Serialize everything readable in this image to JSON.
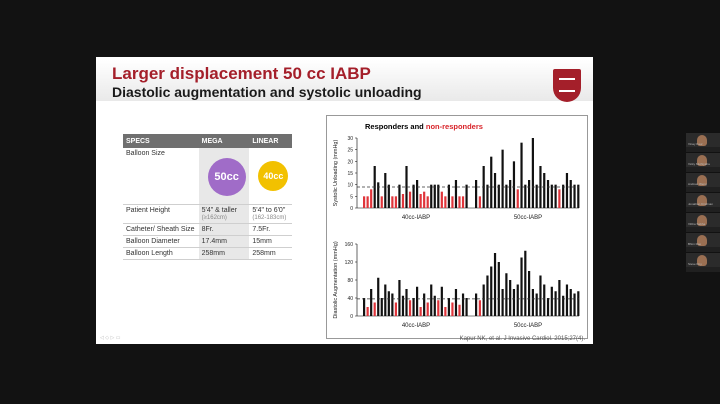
{
  "slide": {
    "title": "Larger displacement 50 cc IABP",
    "subtitle": "Diastolic augmentation and systolic unloading",
    "logo": "university-shield",
    "slide_nav": "◁ ◇ ▷ ▭",
    "citation": "Kapur NK, et al. J Invasive Cardiol. 2015;27(4)."
  },
  "table": {
    "headers": [
      "SPECS",
      "MEGA",
      "LINEAR"
    ],
    "balloon_label": "Balloon Size",
    "mega_balloon": "50cc",
    "linear_balloon": "40cc",
    "rows": [
      {
        "label": "Patient Height",
        "mega": "5'4\" & taller",
        "mega_sub": "(≥162cm)",
        "linear": "5'4\" to 6'0\"",
        "linear_sub": "(162-183cm)"
      },
      {
        "label": "Catheter/ Sheath Size",
        "mega": "8Fr.",
        "mega_sub": "",
        "linear": "7.5Fr.",
        "linear_sub": ""
      },
      {
        "label": "Balloon Diameter",
        "mega": "17.4mm",
        "mega_sub": "",
        "linear": "15mm",
        "linear_sub": ""
      },
      {
        "label": "Balloon Length",
        "mega": "258mm",
        "mega_sub": "",
        "linear": "258mm",
        "linear_sub": ""
      }
    ]
  },
  "chart_title": {
    "black": "Responders and",
    "red": "non-responders"
  },
  "chart_data": [
    {
      "type": "bar",
      "title": "Systolic Unloading",
      "ylabel": "Systolic Unloading (mmHg)",
      "ylim": [
        0,
        30
      ],
      "yticks": [
        0,
        5,
        10,
        15,
        20,
        25,
        30
      ],
      "threshold": 9,
      "groups": [
        "40cc-IABP",
        "50cc-IABP"
      ],
      "series": [
        {
          "name": "40cc-IABP",
          "values": [
            5,
            5,
            8,
            18,
            11,
            5,
            15,
            10,
            5,
            5,
            10,
            6,
            18,
            7,
            10,
            12,
            6,
            7,
            5,
            10,
            10,
            10,
            7,
            5,
            10,
            5,
            12,
            5,
            5,
            10
          ],
          "nonresponder": [
            1,
            1,
            1,
            0,
            0,
            1,
            0,
            0,
            1,
            1,
            0,
            1,
            0,
            1,
            0,
            0,
            1,
            1,
            1,
            0,
            0,
            0,
            1,
            1,
            0,
            1,
            0,
            1,
            1,
            0
          ]
        },
        {
          "name": "50cc-IABP",
          "values": [
            12,
            5,
            18,
            10,
            22,
            15,
            10,
            25,
            10,
            12,
            20,
            8,
            28,
            10,
            12,
            30,
            10,
            18,
            15,
            12,
            10,
            10,
            8,
            10,
            15,
            12,
            10,
            10
          ],
          "nonresponder": [
            0,
            1,
            0,
            0,
            0,
            0,
            0,
            0,
            0,
            0,
            0,
            1,
            0,
            0,
            0,
            0,
            0,
            0,
            0,
            0,
            0,
            0,
            1,
            0,
            0,
            0,
            0,
            0
          ]
        }
      ]
    },
    {
      "type": "bar",
      "title": "Diastolic Augmentation",
      "ylabel": "Diastolic Augmentation (mmHg)",
      "ylim": [
        0,
        160
      ],
      "yticks": [
        0,
        40,
        80,
        120,
        160
      ],
      "threshold": 38,
      "groups": [
        "40cc-IABP",
        "50cc-IABP"
      ],
      "series": [
        {
          "name": "40cc-IABP",
          "values": [
            40,
            20,
            60,
            30,
            85,
            40,
            70,
            55,
            50,
            30,
            80,
            45,
            60,
            35,
            40,
            65,
            20,
            50,
            30,
            70,
            45,
            35,
            65,
            20,
            40,
            30,
            60,
            25,
            50,
            40
          ],
          "nonresponder": [
            0,
            1,
            0,
            1,
            0,
            0,
            0,
            0,
            0,
            1,
            0,
            0,
            0,
            1,
            0,
            0,
            1,
            0,
            1,
            0,
            0,
            1,
            0,
            1,
            0,
            1,
            0,
            1,
            0,
            0
          ]
        },
        {
          "name": "50cc-IABP",
          "values": [
            50,
            35,
            70,
            90,
            110,
            140,
            120,
            60,
            95,
            80,
            60,
            70,
            130,
            145,
            100,
            60,
            50,
            90,
            70,
            40,
            65,
            55,
            80,
            45,
            70,
            60,
            50,
            55
          ],
          "nonresponder": [
            0,
            1,
            0,
            0,
            0,
            0,
            0,
            0,
            0,
            0,
            0,
            0,
            0,
            0,
            0,
            0,
            0,
            0,
            0,
            0,
            0,
            0,
            0,
            0,
            0,
            0,
            0,
            0
          ]
        }
      ]
    }
  ],
  "colors": {
    "responder": "#111111",
    "nonresponder": "#e0353b",
    "brand": "#a41f2a"
  },
  "participants": [
    {
      "name": "Vinay Kaur"
    },
    {
      "name": "Vicky Muthiyaha"
    },
    {
      "name": "Andrew Weng"
    },
    {
      "name": "Jonathan Krishnan"
    },
    {
      "name": "Vibha Sabha"
    },
    {
      "name": "Bhim Rao"
    },
    {
      "name": "Steve Roy"
    }
  ]
}
